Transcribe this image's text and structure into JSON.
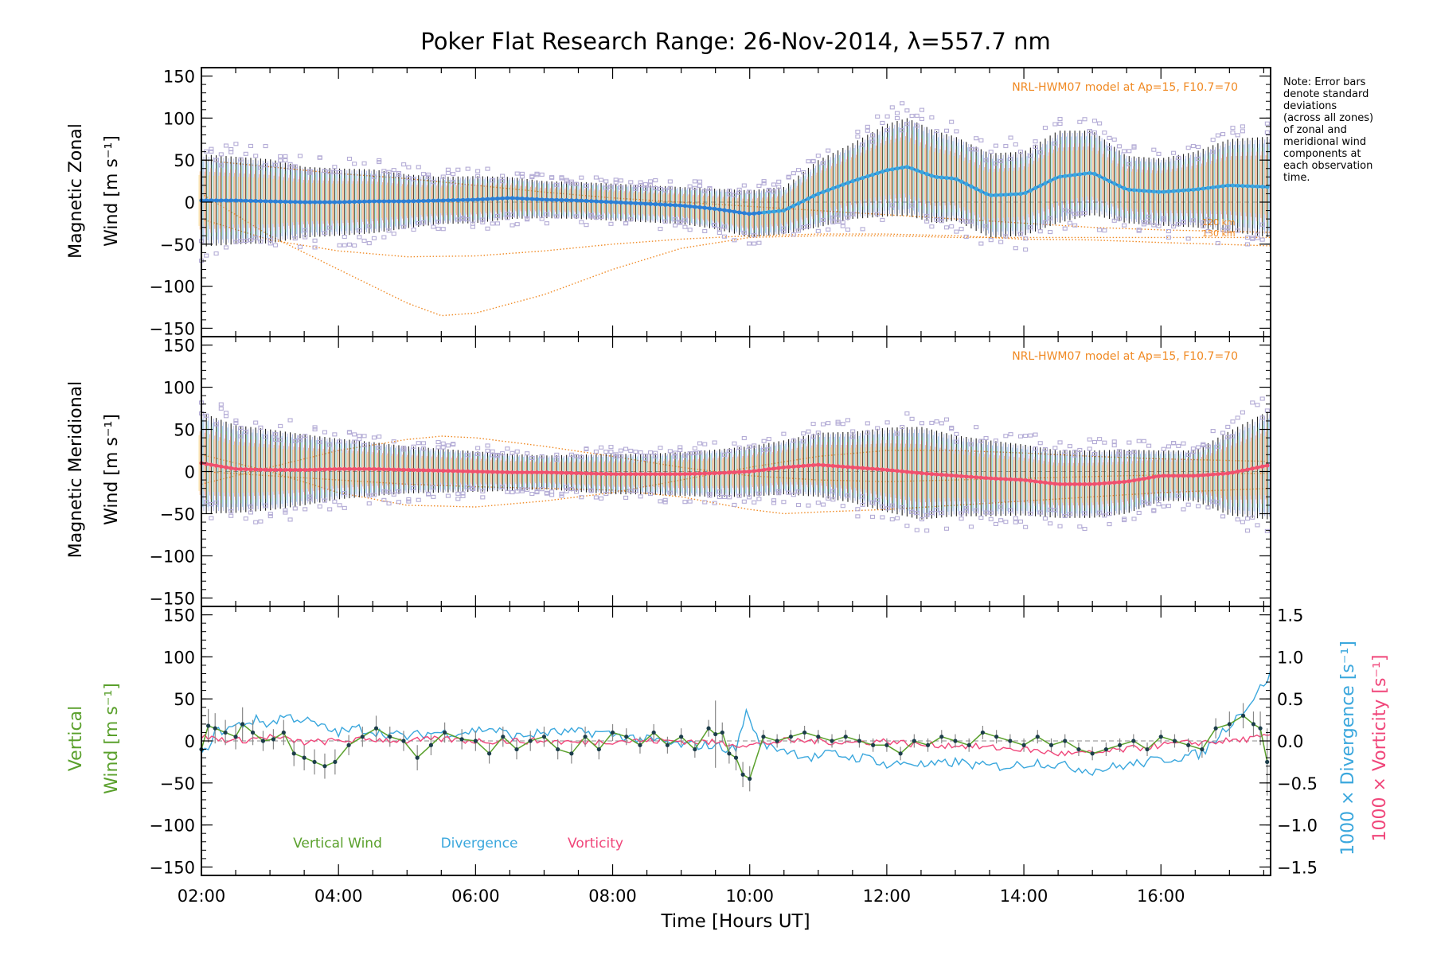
{
  "figure": {
    "title": "Poker Flat Research Range: 26-Nov-2014, λ=557.7 nm",
    "xlabel": "Time [Hours UT]",
    "note": [
      "Note: Error bars",
      "denote standard",
      "deviations",
      "(across all zones)",
      "of zonal and",
      "meridional wind",
      "components at",
      "each observation",
      "time."
    ]
  },
  "colors": {
    "zonal": "#2b7fd6",
    "zonal_late": "#3aa7dd",
    "meridional": "#f0506e",
    "vertical": "#5aa02c",
    "divergence": "#3aa7dd",
    "vorticity": "#f0467a",
    "model": "#f08a24",
    "outlier": "#b4acd6",
    "errorbar": "#222222"
  },
  "chart_data": [
    {
      "type": "line",
      "panel": "zonal",
      "ylabel_lines": [
        "Magnetic Zonal",
        "Wind [m s⁻¹]"
      ],
      "model_label": "NRL-HWM07 model at Ap=15, F10.7=70",
      "model_curve_labels": [
        "120 km",
        "130 km"
      ],
      "xlim": [
        2.0,
        17.6
      ],
      "ylim": [
        -160,
        160
      ],
      "yticks": [
        -150,
        -100,
        -50,
        0,
        50,
        100,
        150
      ],
      "xtick_labels": [
        "02:00",
        "04:00",
        "06:00",
        "08:00",
        "10:00",
        "12:00",
        "14:00",
        "16:00"
      ],
      "x_hours": [
        2.0,
        2.5,
        3.0,
        3.5,
        4.0,
        4.5,
        5.0,
        5.5,
        6.0,
        6.5,
        7.0,
        7.5,
        8.0,
        8.5,
        9.0,
        9.5,
        10.0,
        10.5,
        11.0,
        11.5,
        12.0,
        12.3,
        12.7,
        13.0,
        13.5,
        14.0,
        14.5,
        15.0,
        15.5,
        16.0,
        16.5,
        17.0,
        17.6
      ],
      "series": [
        {
          "values": [
            2,
            2,
            1,
            0,
            0,
            1,
            1,
            2,
            3,
            5,
            3,
            2,
            0,
            -2,
            -4,
            -8,
            -14,
            -10,
            10,
            25,
            38,
            42,
            30,
            28,
            8,
            10,
            30,
            35,
            15,
            12,
            15,
            20,
            18
          ],
          "spread": [
            55,
            52,
            50,
            42,
            40,
            38,
            32,
            28,
            28,
            25,
            22,
            22,
            22,
            22,
            22,
            24,
            28,
            28,
            40,
            45,
            55,
            58,
            55,
            50,
            50,
            50,
            55,
            50,
            40,
            40,
            45,
            55,
            60
          ]
        }
      ],
      "model_curves": [
        {
          "x": [
            2,
            3,
            4,
            5,
            6,
            7,
            8,
            9,
            10,
            11,
            12,
            13,
            14,
            15,
            16,
            17.6
          ],
          "values": [
            50,
            42,
            34,
            28,
            20,
            12,
            5,
            0,
            -5,
            -10,
            -15,
            -20,
            -25,
            -30,
            -33,
            -36
          ]
        },
        {
          "x": [
            2,
            3,
            4,
            5,
            6,
            7,
            8,
            9,
            10,
            11,
            12,
            13,
            14,
            15,
            16,
            17.6
          ],
          "values": [
            -20,
            -45,
            -58,
            -65,
            -64,
            -58,
            -50,
            -44,
            -40,
            -38,
            -38,
            -40,
            -44,
            -45,
            -48,
            -52
          ]
        },
        {
          "x": [
            2,
            3,
            4,
            5,
            5.5,
            6,
            7,
            8,
            9,
            10,
            11,
            12,
            13,
            14,
            15,
            16,
            17.6
          ],
          "values": [
            10,
            -40,
            -80,
            -120,
            -135,
            -132,
            -110,
            -80,
            -55,
            -42,
            -40,
            -40,
            -42,
            -42,
            -42,
            -42,
            -42
          ]
        }
      ]
    },
    {
      "type": "line",
      "panel": "meridional",
      "ylabel_lines": [
        "Magnetic Meridional",
        "Wind [m s⁻¹]"
      ],
      "model_label": "NRL-HWM07 model at Ap=15, F10.7=70",
      "xlim": [
        2.0,
        17.6
      ],
      "ylim": [
        -160,
        160
      ],
      "yticks": [
        -150,
        -100,
        -50,
        0,
        50,
        100,
        150
      ],
      "x_hours": [
        2.0,
        2.5,
        3.0,
        3.5,
        4.0,
        4.5,
        5.0,
        5.5,
        6.0,
        6.5,
        7.0,
        7.5,
        8.0,
        8.5,
        9.0,
        9.5,
        10.0,
        10.5,
        11.0,
        11.5,
        12.0,
        12.5,
        13.0,
        13.5,
        14.0,
        14.5,
        15.0,
        15.5,
        16.0,
        16.5,
        17.0,
        17.6
      ],
      "series": [
        {
          "values": [
            10,
            3,
            2,
            2,
            3,
            3,
            2,
            1,
            0,
            -1,
            -1,
            -2,
            -3,
            -3,
            -3,
            -2,
            0,
            5,
            8,
            5,
            2,
            -2,
            -5,
            -8,
            -10,
            -15,
            -15,
            -12,
            -5,
            -5,
            -2,
            8
          ],
          "spread": [
            60,
            52,
            48,
            42,
            36,
            32,
            28,
            26,
            24,
            22,
            20,
            22,
            24,
            24,
            26,
            28,
            30,
            32,
            38,
            42,
            50,
            55,
            48,
            45,
            42,
            40,
            40,
            38,
            30,
            30,
            50,
            65
          ]
        }
      ],
      "model_curves": [
        {
          "x": [
            2,
            3,
            4,
            5,
            5.5,
            6,
            7,
            8,
            9,
            10,
            11,
            12,
            13,
            14,
            15,
            16,
            17.6
          ],
          "values": [
            -15,
            5,
            25,
            38,
            42,
            40,
            30,
            18,
            5,
            -5,
            -10,
            -12,
            -10,
            -8,
            -6,
            -4,
            -2
          ]
        },
        {
          "x": [
            2,
            3,
            4,
            5,
            6,
            7,
            8,
            9,
            10,
            11,
            12,
            13,
            14,
            15,
            16,
            17.6
          ],
          "values": [
            20,
            0,
            -25,
            -40,
            -42,
            -35,
            -25,
            -10,
            5,
            18,
            25,
            25,
            22,
            18,
            15,
            12
          ]
        },
        {
          "x": [
            2,
            3,
            4,
            5,
            6,
            7,
            8,
            9,
            10,
            10.5,
            11,
            12,
            13,
            14,
            15,
            16,
            17.6
          ],
          "values": [
            0,
            -5,
            -10,
            -15,
            -18,
            -20,
            -22,
            -30,
            -45,
            -50,
            -48,
            -45,
            -40,
            -35,
            -30,
            -25,
            -20
          ]
        }
      ]
    },
    {
      "type": "line",
      "panel": "vertical",
      "ylabel_lines": [
        "Vertical",
        "Wind [m s⁻¹]"
      ],
      "y2label_div": "1000 × Divergence [s⁻¹]",
      "y2label_vort": "1000 × Vorticity [s⁻¹]",
      "xlim": [
        2.0,
        17.6
      ],
      "ylim": [
        -160,
        160
      ],
      "y2lim": [
        -1.6,
        1.6
      ],
      "yticks": [
        -150,
        -100,
        -50,
        0,
        50,
        100,
        150
      ],
      "y2ticks": [
        -1.5,
        -1.0,
        -0.5,
        0.0,
        0.5,
        1.0,
        1.5
      ],
      "y2tick_labels": [
        "−1.5",
        "−1.0",
        "−0.5",
        "0.0",
        "0.5",
        "1.0",
        "1.5"
      ],
      "legend": [
        "Vertical Wind",
        "Divergence",
        "Vorticity"
      ],
      "series": [
        {
          "name": "Vertical Wind",
          "x": [
            2.0,
            2.1,
            2.2,
            2.35,
            2.5,
            2.6,
            2.75,
            2.9,
            3.05,
            3.2,
            3.35,
            3.5,
            3.65,
            3.8,
            3.95,
            4.15,
            4.35,
            4.55,
            4.75,
            4.95,
            5.15,
            5.35,
            5.55,
            5.8,
            6.0,
            6.2,
            6.4,
            6.6,
            6.8,
            7.0,
            7.2,
            7.4,
            7.6,
            7.8,
            8.0,
            8.2,
            8.4,
            8.6,
            8.8,
            9.0,
            9.2,
            9.4,
            9.5,
            9.6,
            9.7,
            9.8,
            9.9,
            10.0,
            10.2,
            10.4,
            10.6,
            10.8,
            11.0,
            11.2,
            11.4,
            11.6,
            11.8,
            12.0,
            12.2,
            12.4,
            12.6,
            12.8,
            13.0,
            13.2,
            13.4,
            13.6,
            13.8,
            14.0,
            14.2,
            14.4,
            14.6,
            14.8,
            15.0,
            15.2,
            15.4,
            15.6,
            15.8,
            16.0,
            16.2,
            16.4,
            16.6,
            16.8,
            17.0,
            17.2,
            17.35,
            17.45,
            17.55
          ],
          "values": [
            -10,
            18,
            15,
            10,
            5,
            20,
            10,
            0,
            2,
            10,
            -15,
            -20,
            -25,
            -30,
            -25,
            -5,
            5,
            15,
            5,
            0,
            -20,
            -5,
            10,
            2,
            0,
            -15,
            5,
            -10,
            0,
            5,
            -10,
            -15,
            5,
            -10,
            10,
            5,
            -5,
            10,
            -5,
            5,
            -10,
            15,
            8,
            10,
            -15,
            -20,
            -40,
            -45,
            5,
            0,
            5,
            10,
            5,
            0,
            5,
            0,
            -5,
            -5,
            -15,
            0,
            -5,
            5,
            0,
            -5,
            10,
            5,
            0,
            -5,
            5,
            -5,
            0,
            -10,
            -15,
            -10,
            -5,
            0,
            -10,
            5,
            0,
            -5,
            -10,
            15,
            20,
            30,
            20,
            15,
            -25
          ],
          "err": [
            15,
            20,
            18,
            15,
            15,
            20,
            15,
            12,
            12,
            15,
            15,
            15,
            15,
            15,
            15,
            12,
            12,
            15,
            12,
            12,
            15,
            12,
            12,
            12,
            12,
            12,
            12,
            12,
            12,
            12,
            12,
            12,
            12,
            12,
            10,
            10,
            10,
            10,
            10,
            10,
            10,
            10,
            40,
            12,
            12,
            15,
            15,
            15,
            8,
            8,
            8,
            8,
            8,
            8,
            8,
            8,
            8,
            8,
            8,
            8,
            8,
            8,
            8,
            8,
            8,
            8,
            8,
            8,
            8,
            8,
            8,
            8,
            8,
            8,
            8,
            8,
            8,
            8,
            8,
            8,
            10,
            12,
            15,
            15,
            15,
            20,
            40
          ]
        },
        {
          "name": "Divergence",
          "x": [
            2.0,
            2.2,
            2.4,
            2.6,
            2.8,
            3.0,
            3.2,
            3.5,
            3.8,
            4.0,
            4.3,
            4.6,
            5.0,
            5.4,
            5.8,
            6.2,
            6.6,
            7.0,
            7.4,
            7.8,
            8.2,
            8.6,
            9.0,
            9.4,
            9.8,
            9.95,
            10.0,
            10.05,
            10.2,
            10.5,
            10.7,
            10.9,
            11.2,
            11.5,
            11.8,
            12.0,
            12.3,
            12.6,
            13.0,
            13.4,
            13.8,
            14.2,
            14.6,
            15.0,
            15.4,
            15.8,
            16.2,
            16.6,
            17.0,
            17.3,
            17.6
          ],
          "values": [
            -0.2,
            0.1,
            0.15,
            0.2,
            0.25,
            0.2,
            0.3,
            0.25,
            0.15,
            0.1,
            0.15,
            0.1,
            0.05,
            0.1,
            0.1,
            0.15,
            0.05,
            0.1,
            0.1,
            0.1,
            0.05,
            0.0,
            -0.05,
            -0.05,
            -0.1,
            0.35,
            0.3,
            0.1,
            -0.05,
            -0.1,
            -0.15,
            -0.2,
            -0.15,
            -0.2,
            -0.2,
            -0.3,
            -0.25,
            -0.3,
            -0.25,
            -0.3,
            -0.3,
            -0.25,
            -0.3,
            -0.35,
            -0.3,
            -0.25,
            -0.2,
            -0.15,
            0.2,
            0.45,
            0.8
          ]
        },
        {
          "name": "Vorticity",
          "x": [
            2.0,
            2.5,
            3.0,
            3.5,
            4.0,
            4.5,
            5.0,
            5.5,
            6.0,
            6.5,
            7.0,
            7.5,
            8.0,
            8.5,
            9.0,
            9.5,
            10.0,
            10.5,
            11.0,
            11.5,
            12.0,
            12.5,
            13.0,
            13.5,
            14.0,
            14.5,
            15.0,
            15.5,
            16.0,
            16.5,
            17.0,
            17.6
          ],
          "values": [
            0.05,
            0.0,
            0.05,
            -0.02,
            0.0,
            0.02,
            0.0,
            0.02,
            0.0,
            0.0,
            0.0,
            -0.02,
            0.0,
            0.0,
            0.0,
            -0.02,
            -0.05,
            0.0,
            0.0,
            -0.02,
            0.0,
            -0.05,
            -0.05,
            -0.08,
            -0.1,
            -0.15,
            -0.15,
            -0.1,
            -0.05,
            -0.02,
            0.0,
            0.05
          ]
        }
      ]
    }
  ]
}
